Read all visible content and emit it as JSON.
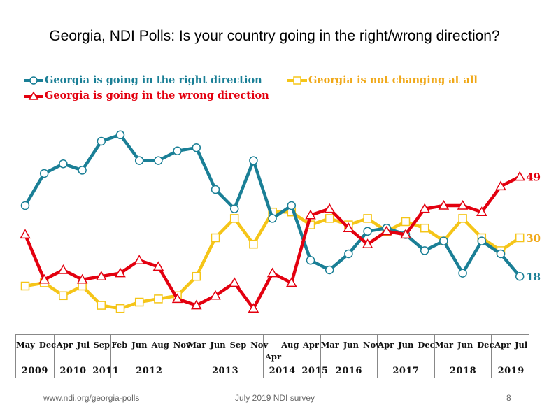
{
  "chart_data": {
    "type": "line",
    "title": "Georgia, NDI Polls: Is your country going in the right/wrong direction?",
    "xlabel": "",
    "ylabel": "",
    "ylim": [
      0,
      70
    ],
    "grid": false,
    "legend_position": "top-left",
    "x": [
      "May 2009",
      "Dec 2009",
      "Apr 2010",
      "Jul 2010",
      "Sep 2011",
      "Feb 2012",
      "Jun 2012",
      "Aug 2012",
      "Nov 2012",
      "Mar 2013",
      "Jun 2013",
      "Sep 2013",
      "Nov 2013",
      "Apr 2014",
      "Aug 2014",
      "Apr 2015",
      "Mar 2016",
      "Jun 2016",
      "Nov 2016",
      "Apr 2017",
      "Jun 2017",
      "Dec 2017",
      "Mar 2018",
      "Jun 2018",
      "Dec 2018",
      "Apr 2019",
      "Jul 2019"
    ],
    "x_groups": [
      {
        "year": "2009",
        "months": "May Dec",
        "count": 2
      },
      {
        "year": "2010",
        "months": "Apr  Jul",
        "count": 2
      },
      {
        "year": "2011",
        "months": "Sep",
        "count": 1
      },
      {
        "year": "2012",
        "months": "Feb  Jun  Aug Nov",
        "count": 4
      },
      {
        "year": "2013",
        "months": "Mar  Jun  Sep  Nov",
        "count": 4
      },
      {
        "year": "2014",
        "months": "Aug",
        "sub_month": "Apr",
        "count": 2
      },
      {
        "year": "2015",
        "months": "Apr",
        "count": 1
      },
      {
        "year": "2016",
        "months": "Mar  Jun  Nov",
        "count": 3
      },
      {
        "year": "2017",
        "months": "Apr  Jun  Dec",
        "count": 3
      },
      {
        "year": "2018",
        "months": "Mar  Jun  Dec",
        "count": 3
      },
      {
        "year": "2019",
        "months": "Apr  Jul",
        "count": 2
      }
    ],
    "series": [
      {
        "name": "Georgia is going in the right direction",
        "color": "#1a7f96",
        "marker": "circle",
        "end_label": "18",
        "values": [
          40,
          50,
          53,
          51,
          60,
          62,
          54,
          54,
          57,
          58,
          45,
          39,
          54,
          36,
          40,
          23,
          20,
          25,
          32,
          33,
          31,
          26,
          29,
          19,
          29,
          25,
          18
        ]
      },
      {
        "name": "Georgia is not changing at all",
        "color": "#f5c518",
        "text_color": "#f0a818",
        "marker": "square",
        "end_label": "30",
        "values": [
          15,
          16,
          12,
          15,
          9,
          8,
          10,
          11,
          12,
          18,
          30,
          36,
          28,
          38,
          38,
          34,
          36,
          34,
          36,
          32,
          35,
          33,
          29,
          36,
          30,
          26,
          30
        ]
      },
      {
        "name": "Georgia is going in the wrong direction",
        "color": "#e3000f",
        "marker": "triangle",
        "end_label": "49",
        "values": [
          31,
          17,
          20,
          17,
          18,
          19,
          23,
          21,
          11,
          9,
          12,
          16,
          8,
          19,
          16,
          37,
          39,
          33,
          28,
          32,
          31,
          39,
          40,
          40,
          38,
          46,
          49
        ]
      }
    ]
  },
  "footer": {
    "url": "www.ndi.org/georgia-polls",
    "survey": "July 2019 NDI survey",
    "page": "8"
  }
}
